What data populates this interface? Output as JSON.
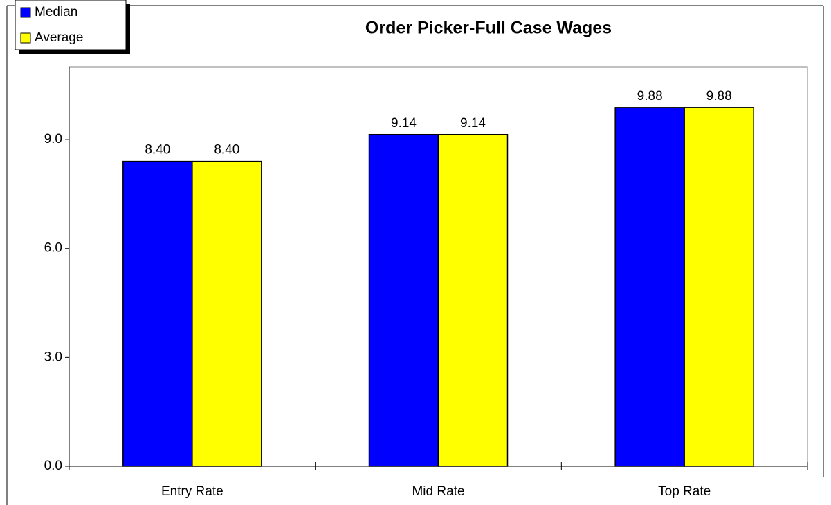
{
  "chart_data": {
    "type": "bar",
    "title": "Order Picker-Full Case Wages",
    "categories": [
      "Entry Rate",
      "Mid Rate",
      "Top Rate"
    ],
    "series": [
      {
        "name": "Median",
        "color": "#0000ff",
        "values": [
          8.4,
          9.14,
          9.88
        ],
        "value_labels": [
          "8.40",
          "9.14",
          "9.88"
        ]
      },
      {
        "name": "Average",
        "color": "#ffff00",
        "values": [
          8.4,
          9.14,
          9.88
        ],
        "value_labels": [
          "8.40",
          "9.14",
          "9.88"
        ]
      }
    ],
    "ylim": [
      0,
      11
    ],
    "yticks": [
      {
        "value": 0,
        "label": "0.0"
      },
      {
        "value": 3,
        "label": "3.0"
      },
      {
        "value": 6,
        "label": "6.0"
      },
      {
        "value": 9,
        "label": "9.0"
      }
    ],
    "grid": false,
    "legend": "top-left"
  }
}
